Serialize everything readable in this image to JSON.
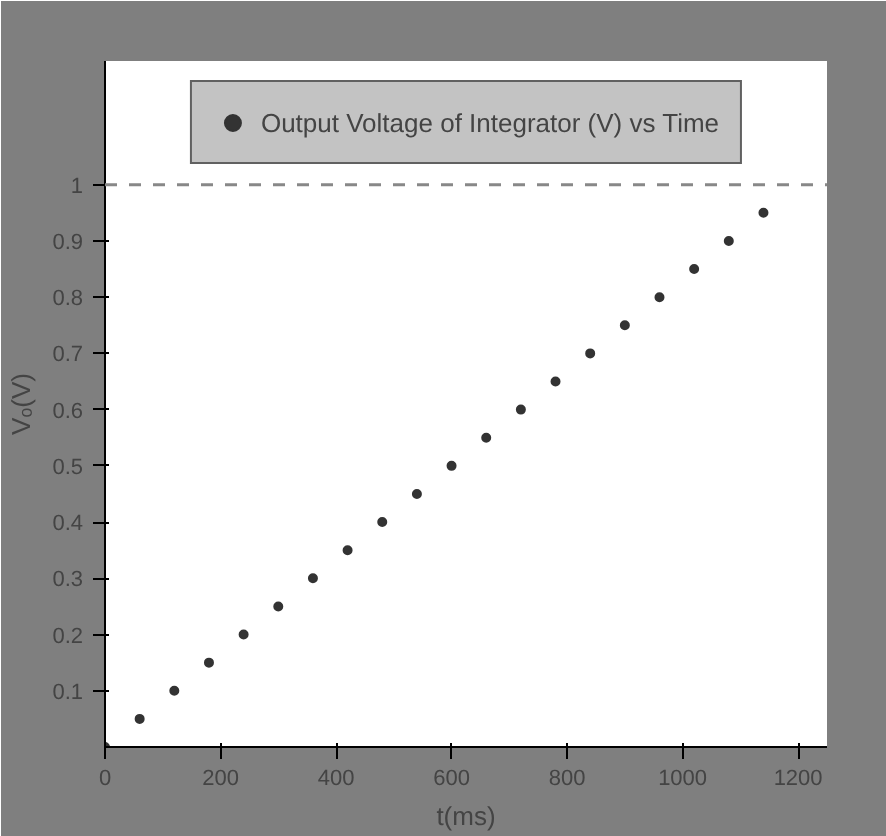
{
  "chart_data": {
    "type": "scatter",
    "xlabel": "t(ms)",
    "ylabel": "Vₒ(V)",
    "x": [
      0,
      60,
      120,
      180,
      240,
      300,
      360,
      420,
      480,
      540,
      600,
      660,
      720,
      780,
      840,
      900,
      960,
      1020,
      1080,
      1140
    ],
    "series": [
      {
        "name": "Output Voltage of Integrator (V) vs Time",
        "color": "#333333",
        "values": [
          0,
          0.05,
          0.1,
          0.15,
          0.2,
          0.25,
          0.3,
          0.35,
          0.4,
          0.45,
          0.5,
          0.55,
          0.6,
          0.65,
          0.7,
          0.75,
          0.8,
          0.85,
          0.9,
          0.95
        ]
      }
    ],
    "xlim": [
      0,
      1250
    ],
    "ylim": [
      0,
      1.22
    ],
    "xticks": [
      0,
      200,
      400,
      600,
      800,
      1000,
      1200
    ],
    "yticks": [
      0.1,
      0.2,
      0.3,
      0.4,
      0.5,
      0.6,
      0.7,
      0.8,
      0.9,
      1
    ],
    "ref_lines": [
      {
        "axis": "y",
        "value": 1,
        "color": "#888888",
        "line_style": "dashed"
      }
    ],
    "grid": false,
    "legend": "top",
    "marker": "circle"
  }
}
